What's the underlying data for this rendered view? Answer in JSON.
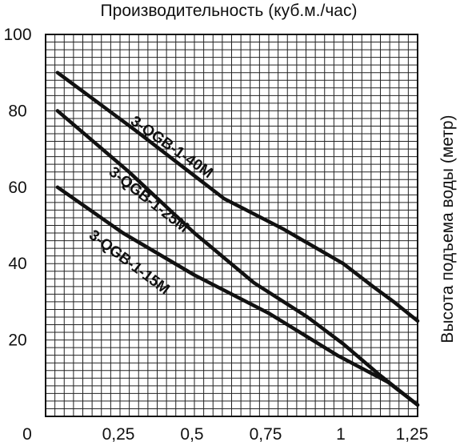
{
  "chart_data": {
    "type": "line",
    "title": "Производительность (куб.м./час)",
    "xlabel": "",
    "ylabel": "Высота подъема воды (метр)",
    "xlim": [
      0,
      1.25
    ],
    "ylim": [
      0,
      100
    ],
    "xticks": [
      "0",
      "0,25",
      "0,5",
      "0,75",
      "1",
      "1,25"
    ],
    "yticks": [
      "20",
      "40",
      "60",
      "80",
      "100"
    ],
    "grid": true,
    "series": [
      {
        "name": "3-QGB-1-40M",
        "x": [
          0.04,
          0.3,
          0.6,
          0.8,
          1.0,
          1.1,
          1.17,
          1.25
        ],
        "y": [
          90,
          75,
          57,
          49,
          40,
          34,
          30,
          25
        ]
      },
      {
        "name": "3-QGB-1-25M",
        "x": [
          0.04,
          0.28,
          0.5,
          0.7,
          0.88,
          1.0,
          1.12,
          1.25
        ],
        "y": [
          80,
          64,
          48,
          35,
          26,
          19,
          11,
          3
        ]
      },
      {
        "name": "3-QGB-1-15M",
        "x": [
          0.04,
          0.26,
          0.5,
          0.75,
          0.98,
          1.15,
          1.25
        ],
        "y": [
          60,
          48,
          37,
          27,
          16,
          9,
          3
        ]
      }
    ]
  }
}
